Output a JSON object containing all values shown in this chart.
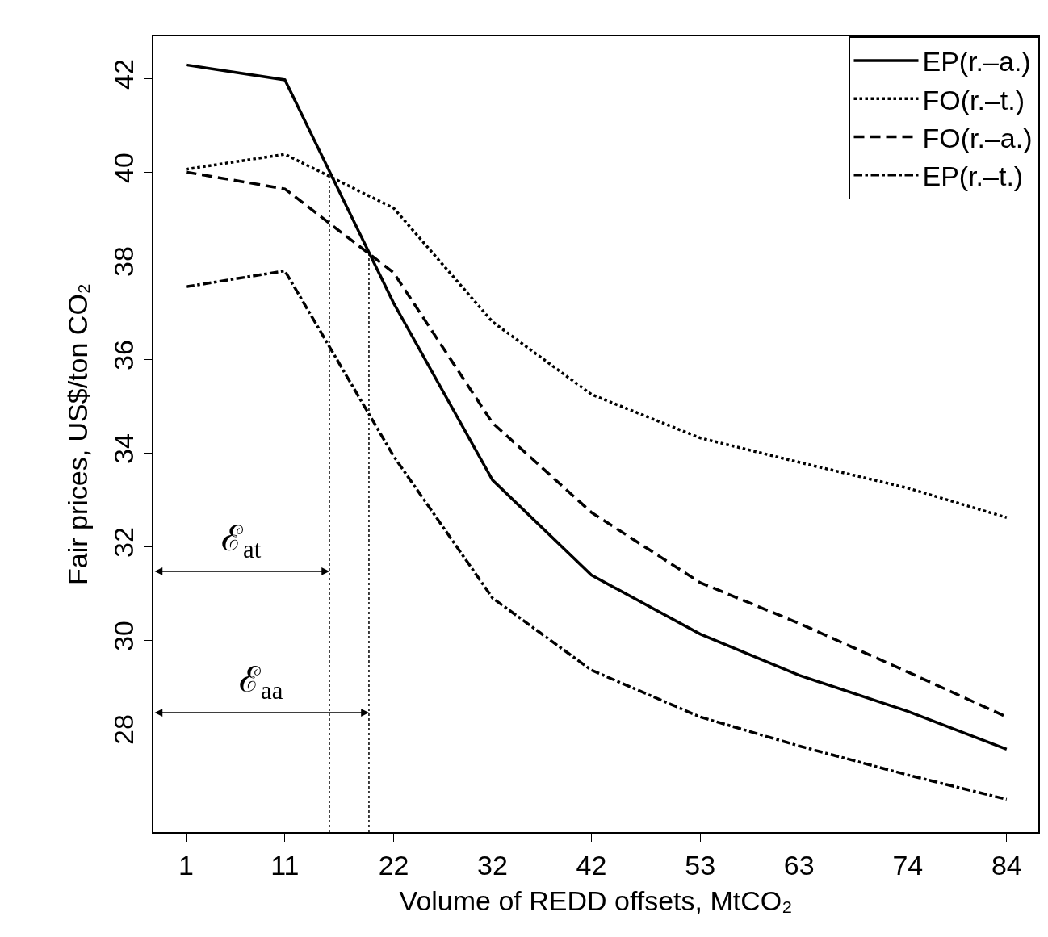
{
  "chart_data": {
    "type": "line",
    "xlabel": "Volume of REDD offsets, MtCO₂",
    "ylabel": "Fair prices, US$/ton CO₂",
    "x": [
      1,
      11,
      22,
      32,
      42,
      53,
      63,
      74,
      84
    ],
    "series": [
      {
        "name": "EP(r.–a.)",
        "color": "#000000",
        "line_style": "solid",
        "values": [
          42.29,
          41.97,
          37.2,
          33.42,
          31.39,
          30.13,
          29.25,
          28.48,
          27.67
        ]
      },
      {
        "name": "FO(r.–t.)",
        "color": "#000000",
        "line_style": "dotted",
        "values": [
          40.06,
          40.38,
          39.23,
          36.8,
          35.25,
          34.32,
          33.8,
          33.25,
          32.62
        ]
      },
      {
        "name": "FO(r.–a.)",
        "color": "#000000",
        "line_style": "dashed",
        "values": [
          40.0,
          39.64,
          37.85,
          34.64,
          32.73,
          31.23,
          30.36,
          29.32,
          28.36
        ]
      },
      {
        "name": "EP(r.–t.)",
        "color": "#000000",
        "line_style": "dashdot",
        "values": [
          37.55,
          37.89,
          33.93,
          30.9,
          29.36,
          28.36,
          27.74,
          27.12,
          26.6
        ]
      }
    ],
    "xlim": [
      -2.3,
      87.2
    ],
    "ylim": [
      25.9,
      42.9
    ],
    "xticks": [
      1,
      11,
      22,
      32,
      42,
      53,
      63,
      74,
      84
    ],
    "yticks": [
      28,
      30,
      32,
      34,
      36,
      38,
      40,
      42
    ],
    "ref_lines": [
      {
        "axis": "x",
        "value": 15.5,
        "line_style": "dotted",
        "color": "#000000"
      },
      {
        "axis": "x",
        "value": 19.5,
        "line_style": "dotted",
        "color": "#000000"
      }
    ],
    "annotations": [
      {
        "text": "ℰ$_{at}$",
        "x": 15.5,
        "y": 31.47
      },
      {
        "text": "ℰ$_{aa}$",
        "x": 19.5,
        "y": 28.45
      }
    ],
    "legend": "top right",
    "marker": "none"
  }
}
